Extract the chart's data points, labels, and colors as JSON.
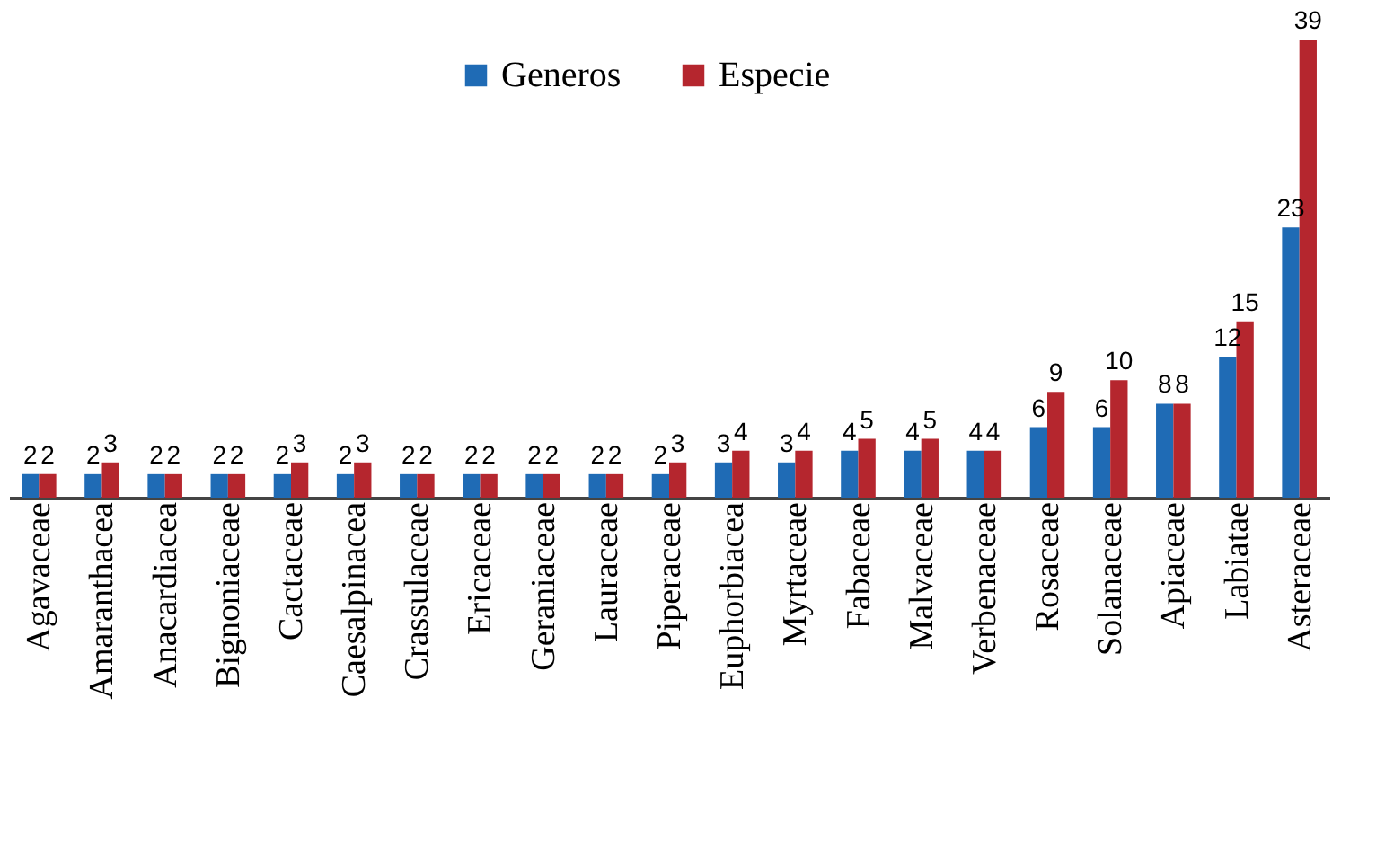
{
  "chart_data": {
    "type": "bar",
    "categories": [
      "Agavaceae",
      "Amaranthacea",
      "Anacardiacea",
      "Bignoniaceae",
      "Cactaceae",
      "Caesalpinacea",
      "Crassulaceae",
      "Ericaceae",
      "Geraniaceae",
      "Lauraceae",
      "Piperaceae",
      "Euphorbiacea",
      "Myrtaceae",
      "Fabaceae",
      "Malvaceae",
      "Verbenaceae",
      "Rosaceae",
      "Solanaceae",
      "Apiaceae",
      "Labiatae",
      "Asteraceae"
    ],
    "series": [
      {
        "name": "Generos",
        "color": "#1f6bb5",
        "values": [
          2,
          2,
          2,
          2,
          2,
          2,
          2,
          2,
          2,
          2,
          2,
          3,
          3,
          4,
          4,
          4,
          6,
          6,
          8,
          12,
          23
        ]
      },
      {
        "name": "Especie",
        "color": "#b5262e",
        "values": [
          2,
          3,
          2,
          2,
          3,
          3,
          2,
          2,
          2,
          2,
          3,
          4,
          4,
          5,
          5,
          4,
          9,
          10,
          8,
          15,
          39
        ]
      }
    ],
    "data_labels": true,
    "legend": "top",
    "grid": false
  }
}
